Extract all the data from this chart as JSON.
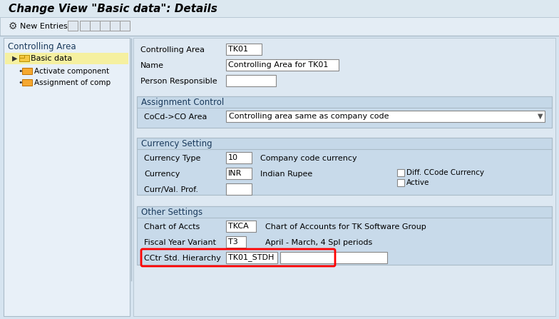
{
  "title": "Change View \"Basic data\": Details",
  "bg_color": "#d6e4f0",
  "panel_bg": "#c8daea",
  "section_header_bg": "#c5d8e8",
  "left_panel_bg": "#e8f0f8",
  "left_panel_selected_bg": "#f5f0a0",
  "left_panel_title": "Controlling Area",
  "left_tree": [
    {
      "label": "Basic data",
      "level": 0,
      "selected": true
    },
    {
      "label": "Activate component",
      "level": 1
    },
    {
      "label": "Assignment of comp",
      "level": 1
    }
  ],
  "fields_top": [
    {
      "label": "Controlling Area",
      "value": "TK01"
    },
    {
      "label": "Name",
      "value": "Controlling Area for TK01"
    },
    {
      "label": "Person Responsible",
      "value": ""
    }
  ],
  "section_assignment": {
    "title": "Assignment Control",
    "fields": [
      {
        "label": "CoCd->CO Area",
        "value": "Controlling area same as company code",
        "dropdown": true
      }
    ]
  },
  "section_currency": {
    "title": "Currency Setting",
    "fields": [
      {
        "label": "Currency Type",
        "value": "10",
        "desc": "Company code currency"
      },
      {
        "label": "Currency",
        "value": "INR",
        "desc": "Indian Rupee",
        "checkboxes": [
          "Diff. CCode Currency",
          "Active"
        ]
      },
      {
        "label": "Curr/Val. Prof.",
        "value": ""
      }
    ]
  },
  "section_other": {
    "title": "Other Settings",
    "fields": [
      {
        "label": "Chart of Accts",
        "value": "TKCA",
        "desc": "Chart of Accounts for TK Software Group"
      },
      {
        "label": "Fiscal Year Variant",
        "value": "T3",
        "desc": "April - March, 4 Spl periods"
      },
      {
        "label": "CCtr Std. Hierarchy",
        "value": "TK01_STDH",
        "highlighted": true,
        "extra_box": true
      }
    ]
  },
  "highlight_color": "#ff0000",
  "section_title_color": "#1a3a5c",
  "title_color": "#000000"
}
